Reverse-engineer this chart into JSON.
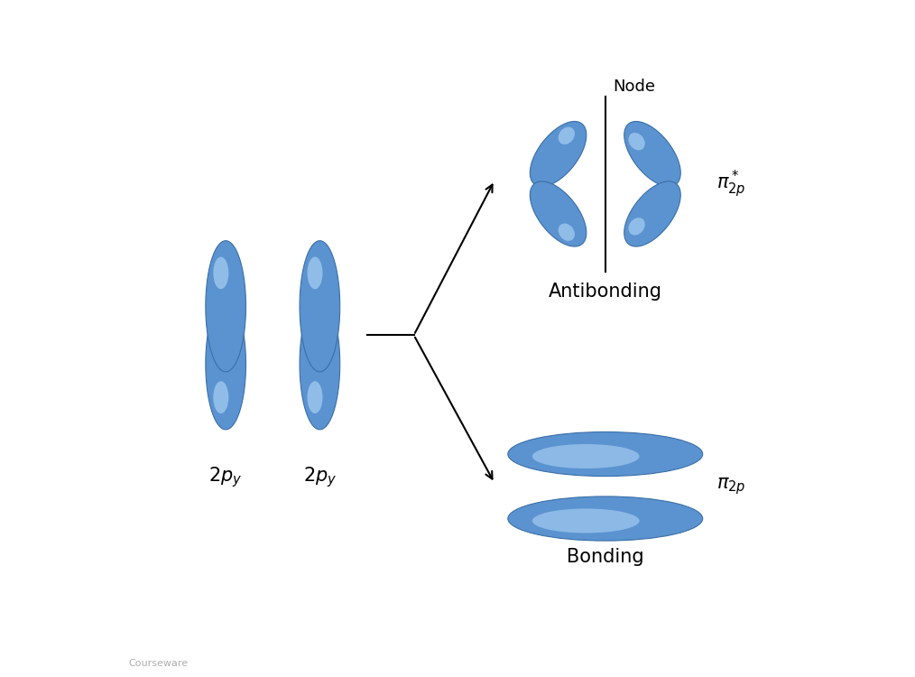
{
  "background_color": "#ffffff",
  "orbital_fill": "#5b93d0",
  "orbital_edge": "#3a6fa8",
  "orbital_highlight": "#aed4f5",
  "orbital_dark": "#3a6fa8",
  "text_color": "#000000",
  "figsize": [
    10.14,
    7.5
  ],
  "dpi": 100,
  "labels": {
    "atom1": "$2p_y$",
    "atom2": "$2p_y$",
    "antibonding": "Antibonding",
    "bonding": "Bonding",
    "pi_star": "$\\pi^*_{2p}$",
    "pi": "$\\pi_{2p}$",
    "node": "Node"
  }
}
